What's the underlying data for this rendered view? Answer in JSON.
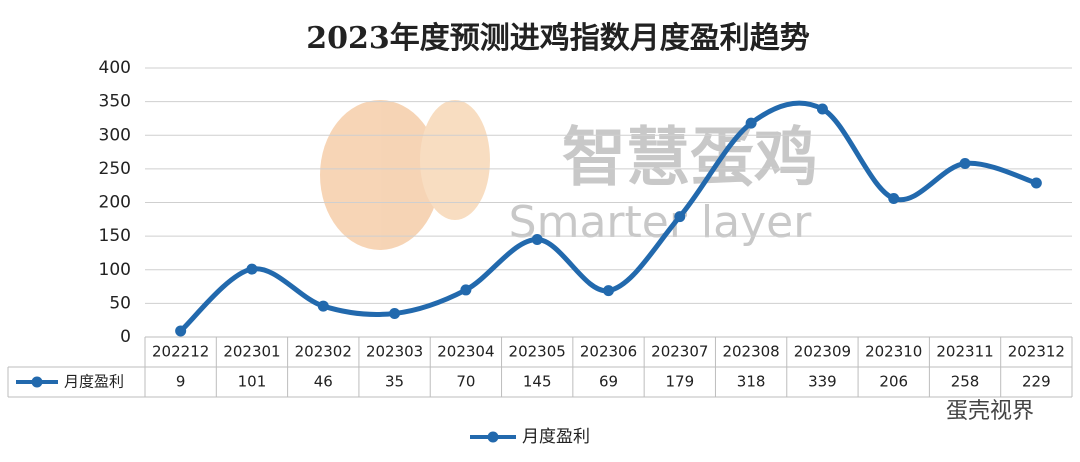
{
  "chart_data": {
    "type": "line",
    "title": "2023年度预测进鸡指数月度盈利趋势",
    "categories": [
      "202212",
      "202301",
      "202302",
      "202303",
      "202304",
      "202305",
      "202306",
      "202307",
      "202308",
      "202309",
      "202310",
      "202311",
      "202312"
    ],
    "series": [
      {
        "name": "月度盈利",
        "color": "#2269ad",
        "values": [
          9,
          101,
          46,
          35,
          70,
          145,
          69,
          179,
          318,
          339,
          206,
          258,
          229
        ]
      }
    ],
    "ylim": [
      0,
      400
    ],
    "yticks": [
      0,
      50,
      100,
      150,
      200,
      250,
      300,
      350,
      400
    ],
    "grid": true,
    "smooth": true,
    "legend": "bottom",
    "data_table": true,
    "watermark": [
      "智慧蛋鸡",
      "Smarter layer"
    ],
    "source": "蛋壳视界"
  }
}
